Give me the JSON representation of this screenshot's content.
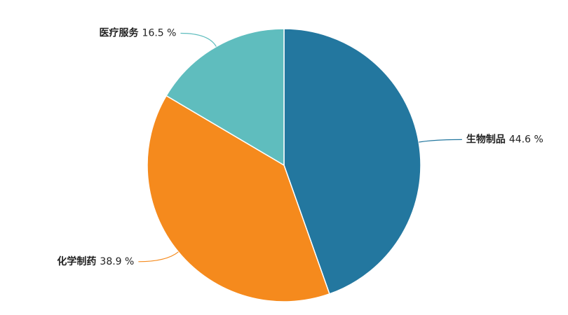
{
  "chart_data": {
    "type": "pie",
    "categories": [
      "生物制品",
      "化学制药",
      "医疗服务"
    ],
    "values": [
      44.6,
      38.9,
      16.5
    ],
    "value_labels": [
      "44.6 %",
      "38.9 %",
      "16.5 %"
    ],
    "colors": [
      "#23779f",
      "#f58a1d",
      "#5fbdbe"
    ]
  }
}
